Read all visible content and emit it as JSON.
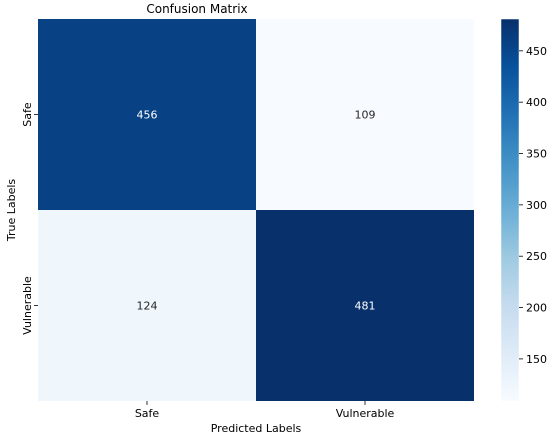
{
  "chart_data": {
    "type": "heatmap",
    "title": "Confusion Matrix",
    "xlabel": "Predicted Labels",
    "ylabel": "True Labels",
    "x_categories": [
      "Safe",
      "Vulnerable"
    ],
    "y_categories": [
      "Safe",
      "Vulnerable"
    ],
    "values": [
      [
        456,
        109
      ],
      [
        124,
        481
      ]
    ],
    "annotations": [
      [
        "456",
        "109"
      ],
      [
        "124",
        "481"
      ]
    ],
    "colorbar": {
      "min": 109,
      "max": 481,
      "ticks": [
        150,
        200,
        250,
        300,
        350,
        400,
        450
      ],
      "tick_labels": [
        "150",
        "200",
        "250",
        "300",
        "350",
        "400",
        "450"
      ]
    },
    "colormap": "Blues",
    "grid": false,
    "legend": "colorbar-right"
  }
}
